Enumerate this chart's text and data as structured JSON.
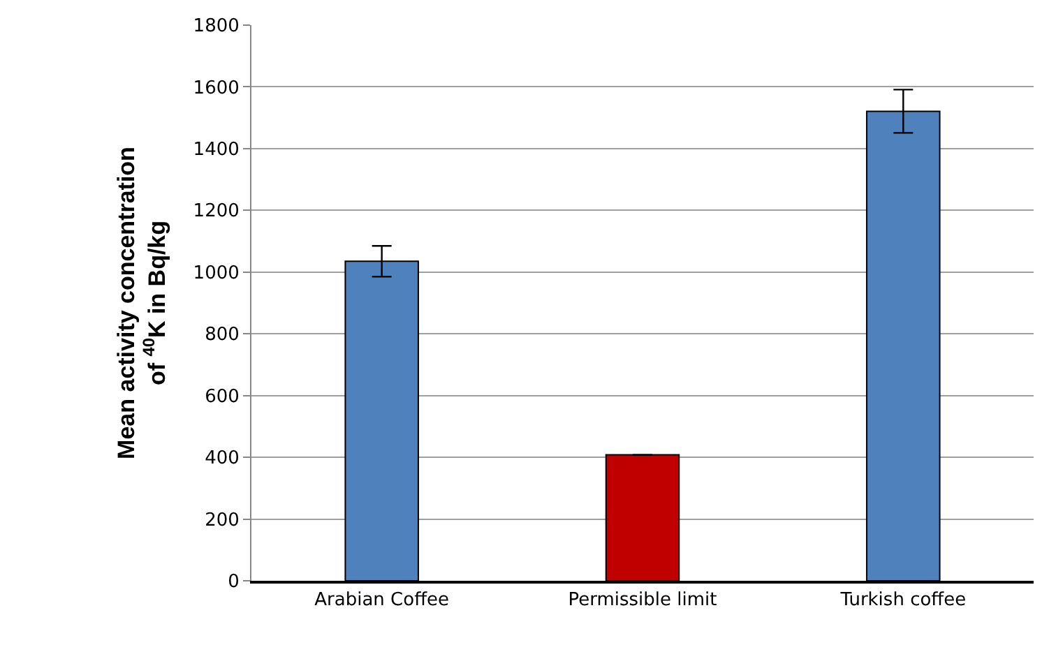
{
  "chart_data": {
    "type": "bar",
    "ylabel": "Mean activity concentration\nof $^{40}$K in Bq/kg",
    "categories": [
      "Arabian Coffee",
      "Permissible limit",
      "Turkish coffee"
    ],
    "values": [
      1035,
      408,
      1521
    ],
    "colors": [
      "#4f81bd",
      "#c00000",
      "#4f81bd"
    ],
    "errors": [
      50,
      null,
      70
    ],
    "ylim": [
      0,
      1800
    ],
    "yticks": [
      0,
      200,
      400,
      600,
      800,
      1000,
      1200,
      1400,
      1600,
      1800
    ],
    "grid": "y"
  }
}
